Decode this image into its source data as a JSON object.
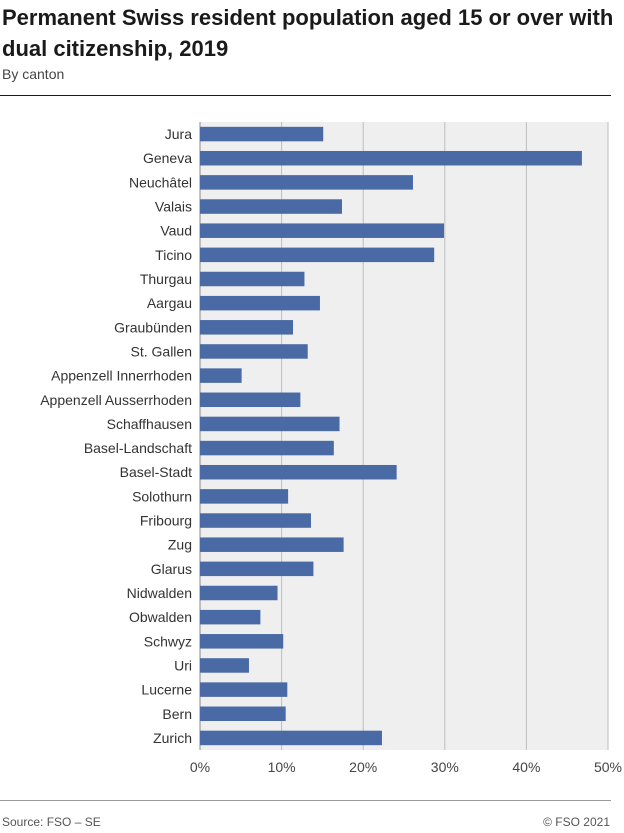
{
  "header": {
    "title": "Permanent Swiss resident population aged 15 or over with dual citizenship, 2019",
    "subtitle": "By canton"
  },
  "footer": {
    "source": "Source: FSO – SE",
    "copyright": "© FSO 2021"
  },
  "colors": {
    "bar": "#4a6aa5",
    "plot_bg": "#efefef",
    "grid": "#bdbdbd"
  },
  "chart_data": {
    "type": "bar",
    "orientation": "horizontal",
    "categories": [
      "Jura",
      "Geneva",
      "Neuchâtel",
      "Valais",
      "Vaud",
      "Ticino",
      "Thurgau",
      "Aargau",
      "Graubünden",
      "St. Gallen",
      "Appenzell Innerrhoden",
      "Appenzell Ausserrhoden",
      "Schaffhausen",
      "Basel-Landschaft",
      "Basel-Stadt",
      "Solothurn",
      "Fribourg",
      "Zug",
      "Glarus",
      "Nidwalden",
      "Obwalden",
      "Schwyz",
      "Uri",
      "Lucerne",
      "Bern",
      "Zurich"
    ],
    "values": [
      15.1,
      46.8,
      26.1,
      17.4,
      29.9,
      28.7,
      12.8,
      14.7,
      11.4,
      13.2,
      5.1,
      12.3,
      17.1,
      16.4,
      24.1,
      10.8,
      13.6,
      17.6,
      13.9,
      9.5,
      7.4,
      10.2,
      6.0,
      10.7,
      10.5,
      22.3
    ],
    "xlim": [
      0,
      50
    ],
    "xticks": [
      "0%",
      "10%",
      "20%",
      "30%",
      "40%",
      "50%"
    ],
    "grid": true
  }
}
